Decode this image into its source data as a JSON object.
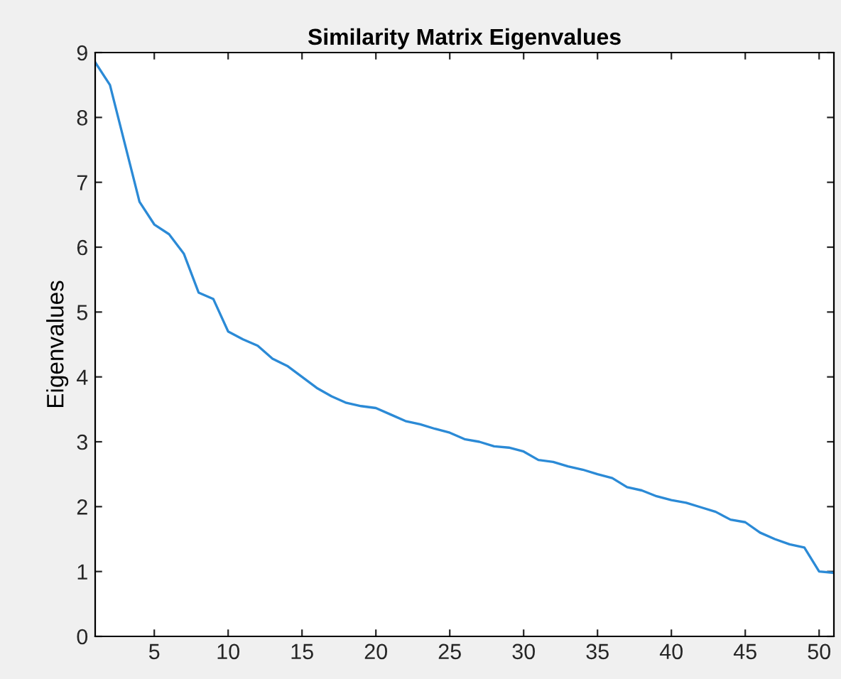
{
  "chart_data": {
    "type": "line",
    "title": "Similarity Matrix Eigenvalues",
    "ylabel": "Eigenvalues",
    "x": [
      1,
      2,
      3,
      4,
      5,
      6,
      7,
      8,
      9,
      10,
      11,
      12,
      13,
      14,
      15,
      16,
      17,
      18,
      19,
      20,
      21,
      22,
      23,
      24,
      25,
      26,
      27,
      28,
      29,
      30,
      31,
      32,
      33,
      34,
      35,
      36,
      37,
      38,
      39,
      40,
      41,
      42,
      43,
      44,
      45,
      46,
      47,
      48,
      49,
      50,
      51
    ],
    "series": [
      {
        "color": "#2b8ad6",
        "values": [
          8.85,
          8.5,
          7.6,
          6.7,
          6.35,
          6.2,
          5.9,
          5.3,
          5.2,
          4.7,
          4.58,
          4.48,
          4.28,
          4.17,
          4.0,
          3.83,
          3.7,
          3.6,
          3.55,
          3.52,
          3.42,
          3.32,
          3.27,
          3.2,
          3.14,
          3.04,
          3.0,
          2.93,
          2.91,
          2.85,
          2.72,
          2.69,
          2.62,
          2.57,
          2.5,
          2.44,
          2.3,
          2.25,
          2.16,
          2.1,
          2.06,
          1.99,
          1.92,
          1.8,
          1.76,
          1.6,
          1.5,
          1.42,
          1.37,
          1.0,
          0.98
        ]
      }
    ],
    "xlim": [
      1,
      51
    ],
    "xticks": [
      5,
      10,
      15,
      20,
      25,
      30,
      35,
      40,
      45,
      50
    ],
    "ylim": [
      0,
      9
    ],
    "yticks": [
      0,
      1,
      2,
      3,
      4,
      5,
      6,
      7,
      8,
      9
    ],
    "grid": false,
    "marker": "none",
    "line_style": "solid"
  }
}
